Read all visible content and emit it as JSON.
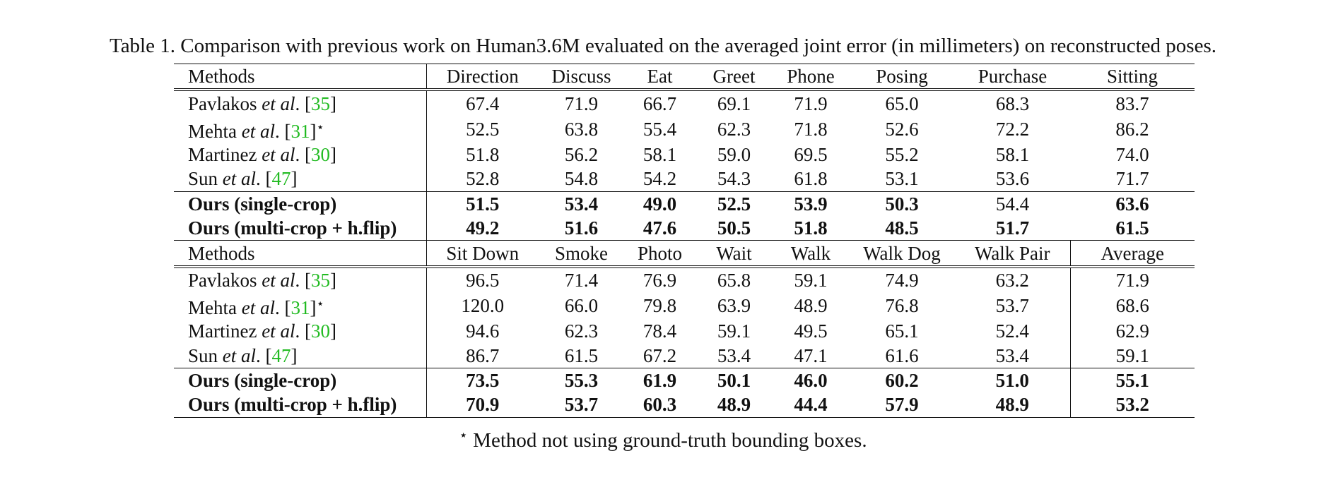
{
  "caption": "Table 1. Comparison with previous work on Human3.6M evaluated on the averaged joint error (in millimeters) on reconstructed poses.",
  "methods_header": "Methods",
  "etal": "et al",
  "header1": [
    "Direction",
    "Discuss",
    "Eat",
    "Greet",
    "Phone",
    "Posing",
    "Purchase",
    "Sitting"
  ],
  "header2": [
    "Sit Down",
    "Smoke",
    "Photo",
    "Wait",
    "Walk",
    "Walk Dog",
    "Walk Pair",
    "Average"
  ],
  "methods": [
    {
      "name": "Pavlakos",
      "ref": "35",
      "star": ""
    },
    {
      "name": "Mehta",
      "ref": "31",
      "star": "⋆"
    },
    {
      "name": "Martinez",
      "ref": "30",
      "star": ""
    },
    {
      "name": "Sun",
      "ref": "47",
      "star": ""
    }
  ],
  "ours": [
    "Ours (single-crop)",
    "Ours (multi-crop + h.flip)"
  ],
  "block1": [
    [
      "67.4",
      "71.9",
      "66.7",
      "69.1",
      "71.9",
      "65.0",
      "68.3",
      "83.7"
    ],
    [
      "52.5",
      "63.8",
      "55.4",
      "62.3",
      "71.8",
      "52.6",
      "72.2",
      "86.2"
    ],
    [
      "51.8",
      "56.2",
      "58.1",
      "59.0",
      "69.5",
      "55.2",
      "58.1",
      "74.0"
    ],
    [
      "52.8",
      "54.8",
      "54.2",
      "54.3",
      "61.8",
      "53.1",
      "53.6",
      "71.7"
    ],
    [
      "51.5",
      "53.4",
      "49.0",
      "52.5",
      "53.9",
      "50.3",
      "54.4",
      "63.6"
    ],
    [
      "49.2",
      "51.6",
      "47.6",
      "50.5",
      "51.8",
      "48.5",
      "51.7",
      "61.5"
    ]
  ],
  "block2": [
    [
      "96.5",
      "71.4",
      "76.9",
      "65.8",
      "59.1",
      "74.9",
      "63.2",
      "71.9"
    ],
    [
      "120.0",
      "66.0",
      "79.8",
      "63.9",
      "48.9",
      "76.8",
      "53.7",
      "68.6"
    ],
    [
      "94.6",
      "62.3",
      "78.4",
      "59.1",
      "49.5",
      "65.1",
      "52.4",
      "62.9"
    ],
    [
      "86.7",
      "61.5",
      "67.2",
      "53.4",
      "47.1",
      "61.6",
      "53.4",
      "59.1"
    ],
    [
      "73.5",
      "55.3",
      "61.9",
      "50.1",
      "46.0",
      "60.2",
      "51.0",
      "55.1"
    ],
    [
      "70.9",
      "53.7",
      "60.3",
      "48.9",
      "44.4",
      "57.9",
      "48.9",
      "53.2"
    ]
  ],
  "footnote_star": "⋆",
  "footnote": "Method not using ground-truth bounding boxes."
}
